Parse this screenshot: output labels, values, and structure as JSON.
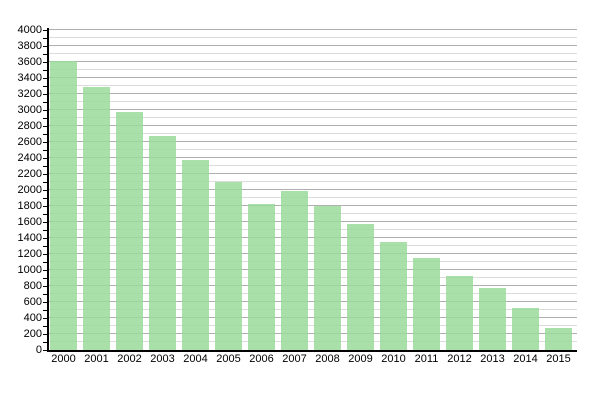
{
  "chart_data": {
    "type": "bar",
    "title": "",
    "xlabel": "",
    "ylabel": "",
    "categories": [
      "2000",
      "2001",
      "2002",
      "2003",
      "2004",
      "2005",
      "2006",
      "2007",
      "2008",
      "2009",
      "2010",
      "2011",
      "2012",
      "2013",
      "2014",
      "2015"
    ],
    "values": [
      3610,
      3290,
      2980,
      2680,
      2380,
      2100,
      1830,
      1990,
      1800,
      1570,
      1350,
      1150,
      920,
      780,
      530,
      270
    ],
    "ylim": [
      0,
      4000
    ],
    "y_tick_step": 200,
    "y_minor_step": 100,
    "y_tick_labels": [
      "0",
      "200",
      "400",
      "600",
      "800",
      "1000",
      "1200",
      "1400",
      "1600",
      "1800",
      "2000",
      "2200",
      "2400",
      "2600",
      "2800",
      "3000",
      "3200",
      "3400",
      "3600",
      "3800",
      "4000"
    ],
    "grid": true,
    "legend_position": "none",
    "colors": {
      "bar_fill": "rgba(154,219,154,0.85)",
      "bar_fill_hex": "#a9e0a9",
      "grid_major": "#b0b0b0",
      "grid_minor": "#dcdcdc",
      "axis": "#000000",
      "background": "#ffffff",
      "text": "#000000"
    }
  }
}
